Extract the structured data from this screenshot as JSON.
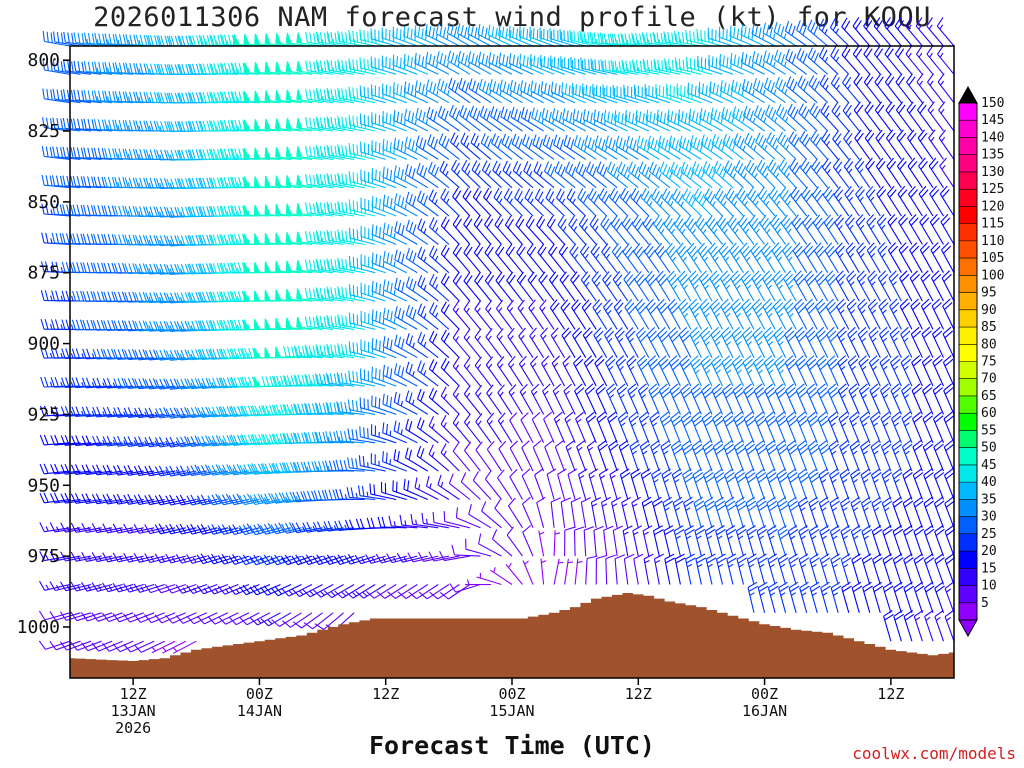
{
  "title": "2026011306 NAM forecast wind profile (kt) for KOQU",
  "credit": "coolwx.com/models",
  "chart_data": {
    "type": "wind-barb-time-height",
    "title": "2026011306 NAM forecast wind profile (kt) for KOQU",
    "xlabel": "Forecast Time (UTC)",
    "ylabel": "",
    "init_time": "2026011306",
    "station": "KOQU",
    "units": "kt",
    "x_range_hours": [
      0,
      84
    ],
    "x_ticks": [
      {
        "hour": 6,
        "lines": [
          "12Z",
          "13JAN",
          "2026"
        ]
      },
      {
        "hour": 18,
        "lines": [
          "00Z",
          "14JAN"
        ]
      },
      {
        "hour": 30,
        "lines": [
          "12Z"
        ]
      },
      {
        "hour": 42,
        "lines": [
          "00Z",
          "15JAN"
        ]
      },
      {
        "hour": 54,
        "lines": [
          "12Z"
        ]
      },
      {
        "hour": 66,
        "lines": [
          "00Z",
          "16JAN"
        ]
      },
      {
        "hour": 78,
        "lines": [
          "12Z"
        ]
      }
    ],
    "y_range_hpa": [
      795,
      1018
    ],
    "y_ticks": [
      800,
      825,
      850,
      875,
      900,
      925,
      950,
      975,
      1000
    ],
    "y_inverted": true,
    "pressure_levels": [
      795,
      805,
      815,
      825,
      835,
      845,
      855,
      865,
      875,
      885,
      895,
      905,
      915,
      925,
      935,
      945,
      955,
      965,
      975,
      985,
      995,
      1005,
      1015
    ],
    "surface_pressure_hpa": [
      {
        "hour": 0,
        "p": 1011
      },
      {
        "hour": 6,
        "p": 1012
      },
      {
        "hour": 9,
        "p": 1011
      },
      {
        "hour": 12,
        "p": 1008
      },
      {
        "hour": 18,
        "p": 1005
      },
      {
        "hour": 22,
        "p": 1003
      },
      {
        "hour": 24,
        "p": 1001
      },
      {
        "hour": 26,
        "p": 999
      },
      {
        "hour": 29,
        "p": 997
      },
      {
        "hour": 34,
        "p": 997
      },
      {
        "hour": 40,
        "p": 997
      },
      {
        "hour": 43,
        "p": 997
      },
      {
        "hour": 46,
        "p": 995
      },
      {
        "hour": 48,
        "p": 993
      },
      {
        "hour": 50,
        "p": 990
      },
      {
        "hour": 53,
        "p": 988
      },
      {
        "hour": 55,
        "p": 989
      },
      {
        "hour": 57,
        "p": 991
      },
      {
        "hour": 60,
        "p": 993
      },
      {
        "hour": 63,
        "p": 996
      },
      {
        "hour": 66,
        "p": 999
      },
      {
        "hour": 69,
        "p": 1001
      },
      {
        "hour": 72,
        "p": 1002
      },
      {
        "hour": 75,
        "p": 1005
      },
      {
        "hour": 78,
        "p": 1008
      },
      {
        "hour": 82,
        "p": 1010
      },
      {
        "hour": 84,
        "p": 1009
      }
    ],
    "wind_keyframes": [
      {
        "hour": 0,
        "levels": [
          [
            800,
            280,
            30
          ],
          [
            900,
            270,
            25
          ],
          [
            975,
            260,
            15
          ],
          [
            1010,
            250,
            10
          ]
        ]
      },
      {
        "hour": 12,
        "levels": [
          [
            800,
            270,
            40
          ],
          [
            900,
            265,
            35
          ],
          [
            975,
            255,
            15
          ],
          [
            1010,
            240,
            5
          ]
        ]
      },
      {
        "hour": 20,
        "levels": [
          [
            800,
            275,
            50
          ],
          [
            900,
            270,
            50
          ],
          [
            940,
            265,
            45
          ],
          [
            1000,
            240,
            10
          ]
        ]
      },
      {
        "hour": 28,
        "levels": [
          [
            800,
            280,
            45
          ],
          [
            900,
            280,
            45
          ],
          [
            960,
            270,
            25
          ],
          [
            1000,
            220,
            8
          ]
        ]
      },
      {
        "hour": 38,
        "levels": [
          [
            800,
            300,
            35
          ],
          [
            860,
            320,
            20
          ],
          [
            950,
            320,
            12
          ],
          [
            1000,
            200,
            6
          ]
        ]
      },
      {
        "hour": 46,
        "levels": [
          [
            800,
            290,
            40
          ],
          [
            870,
            320,
            20
          ],
          [
            950,
            340,
            10
          ],
          [
            995,
            20,
            5
          ]
        ]
      },
      {
        "hour": 54,
        "levels": [
          [
            800,
            275,
            45
          ],
          [
            860,
            320,
            30
          ],
          [
            940,
            340,
            25
          ],
          [
            985,
            350,
            10
          ]
        ]
      },
      {
        "hour": 60,
        "levels": [
          [
            800,
            280,
            45
          ],
          [
            880,
            330,
            35
          ],
          [
            950,
            340,
            30
          ],
          [
            995,
            350,
            25
          ]
        ]
      },
      {
        "hour": 68,
        "levels": [
          [
            800,
            300,
            35
          ],
          [
            880,
            330,
            35
          ],
          [
            950,
            340,
            30
          ],
          [
            1000,
            345,
            25
          ]
        ]
      },
      {
        "hour": 76,
        "levels": [
          [
            800,
            320,
            20
          ],
          [
            880,
            330,
            25
          ],
          [
            950,
            340,
            25
          ],
          [
            1005,
            345,
            20
          ]
        ]
      },
      {
        "hour": 84,
        "levels": [
          [
            800,
            320,
            15
          ],
          [
            900,
            335,
            20
          ],
          [
            975,
            340,
            20
          ],
          [
            1010,
            340,
            15
          ]
        ]
      }
    ],
    "colorbar": {
      "labels": [
        150,
        145,
        140,
        135,
        130,
        125,
        120,
        115,
        110,
        105,
        100,
        95,
        90,
        85,
        80,
        75,
        70,
        65,
        60,
        55,
        50,
        45,
        40,
        35,
        30,
        25,
        20,
        15,
        10,
        5
      ],
      "colors": [
        "#ff00ff",
        "#ff00d0",
        "#ff00a8",
        "#ff0080",
        "#ff0050",
        "#ff0020",
        "#ff0000",
        "#ff3000",
        "#ff5000",
        "#ff7000",
        "#ff9000",
        "#ffb000",
        "#ffd000",
        "#ffef00",
        "#ffff00",
        "#d0ff00",
        "#a0ff00",
        "#50ff00",
        "#00ff00",
        "#00ff70",
        "#00ffc8",
        "#00e8e8",
        "#00b8ff",
        "#0090ff",
        "#0060ff",
        "#0030ff",
        "#0000ff",
        "#3000ff",
        "#6000ff",
        "#9000ff"
      ]
    },
    "ground_color": "#a0522d"
  }
}
